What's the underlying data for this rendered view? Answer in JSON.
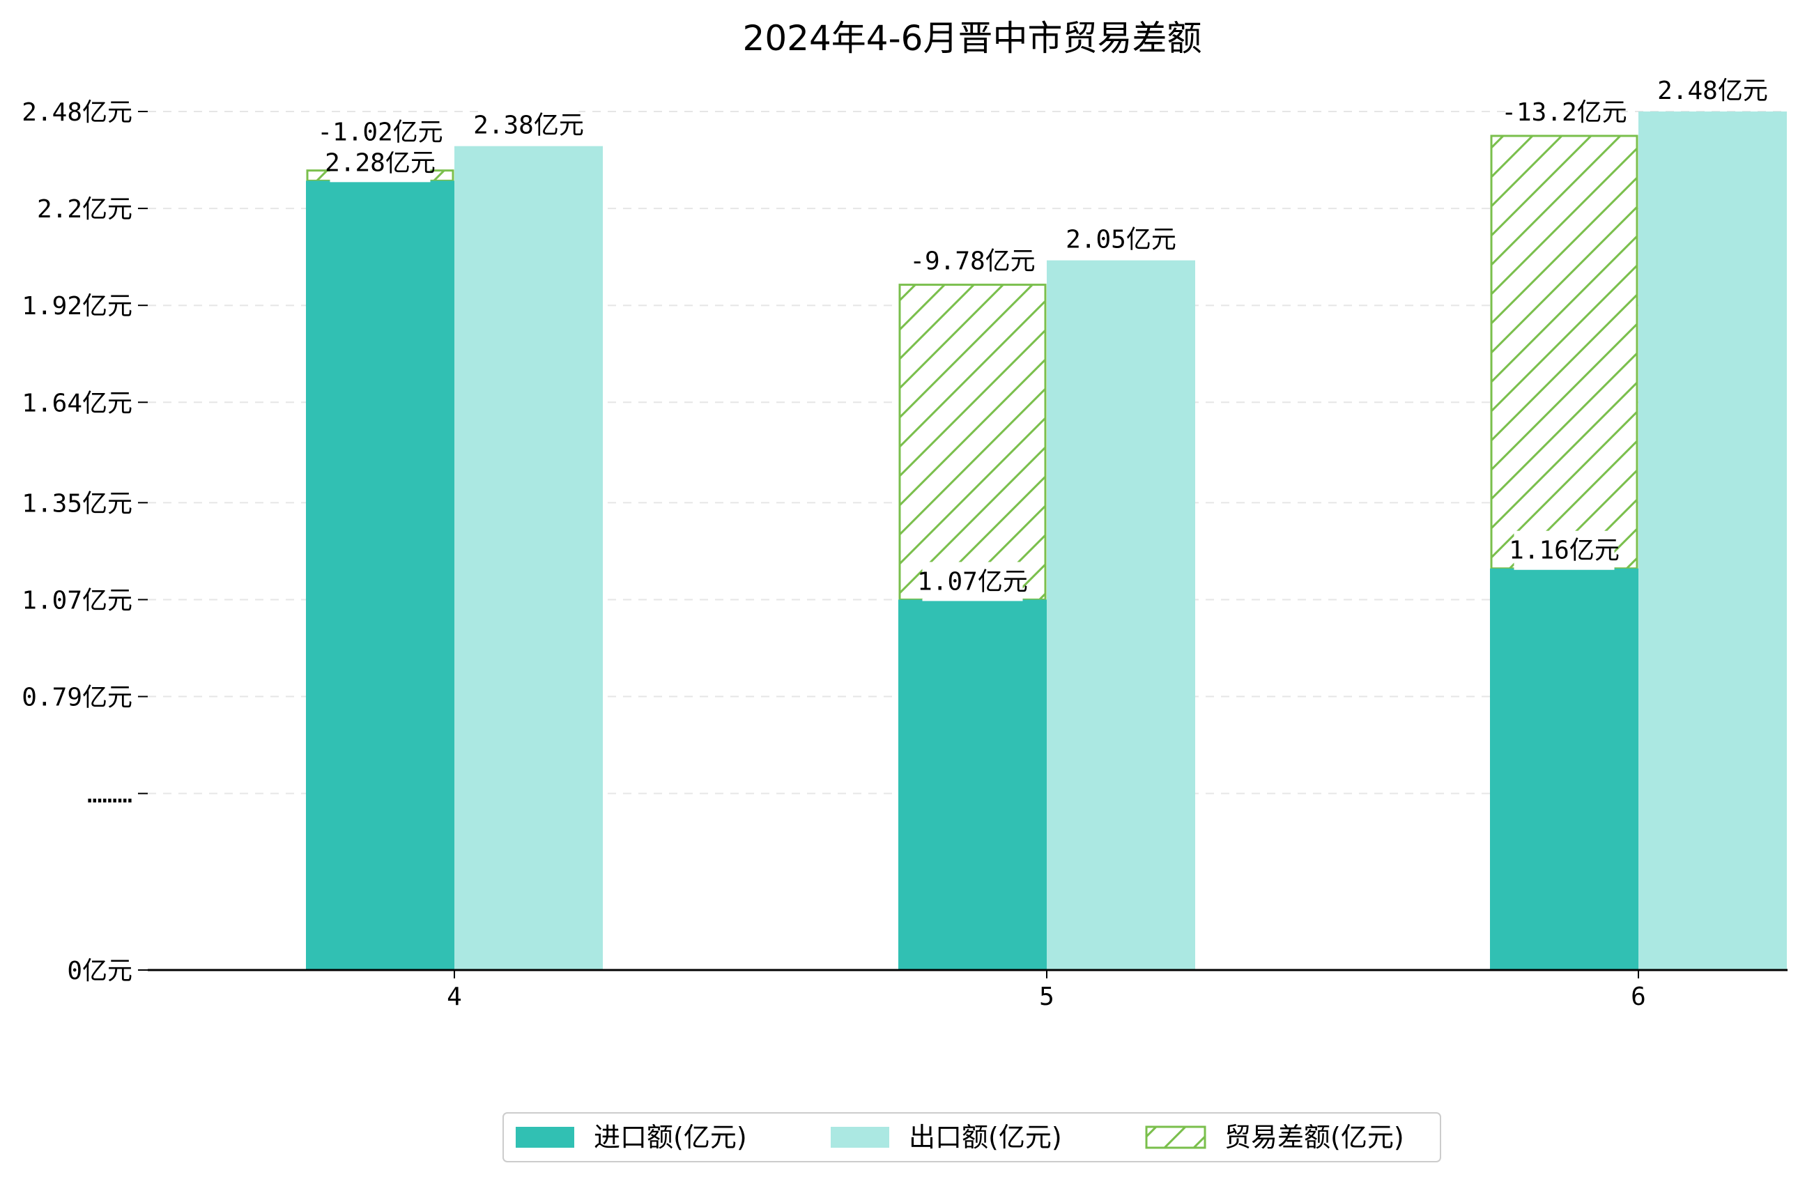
{
  "chart_data": {
    "type": "bar",
    "title": "2024年4-6月晋中市贸易差额",
    "categories": [
      "4",
      "5",
      "6"
    ],
    "series": [
      {
        "name": "进口额(亿元)",
        "values": [
          2.28,
          1.07,
          1.16
        ],
        "labels": [
          "2.28亿元",
          "1.07亿元",
          "1.16亿元"
        ]
      },
      {
        "name": "出口额(亿元)",
        "values": [
          2.38,
          2.05,
          2.48
        ],
        "labels": [
          "2.38亿元",
          "2.05亿元",
          "2.48亿元"
        ]
      },
      {
        "name": "贸易差额(亿元)",
        "values": [
          -1.02,
          -9.78,
          -13.2
        ],
        "labels": [
          "-1.02亿元",
          "-9.78亿元",
          "-13.2亿元"
        ]
      }
    ],
    "yticks": [
      {
        "value": 2.48,
        "label": "2.48亿元"
      },
      {
        "value": 2.2,
        "label": "2.2亿元"
      },
      {
        "value": 1.92,
        "label": "1.92亿元"
      },
      {
        "value": 1.64,
        "label": "1.64亿元"
      },
      {
        "value": 1.35,
        "label": "1.35亿元"
      },
      {
        "value": 1.07,
        "label": "1.07亿元"
      },
      {
        "value": 0.79,
        "label": "0.79亿元"
      },
      {
        "value": 0.51,
        "label": "………"
      },
      {
        "value": 0,
        "label": "0亿元"
      }
    ],
    "ylim": [
      0,
      2.48
    ],
    "xlabel": "",
    "ylabel": "",
    "grid": "horizontal dashed",
    "legend_position": "bottom-center",
    "colors": {
      "import": "#31c0b3",
      "export": "#abe8e2",
      "balance": "#7abf4c"
    }
  }
}
